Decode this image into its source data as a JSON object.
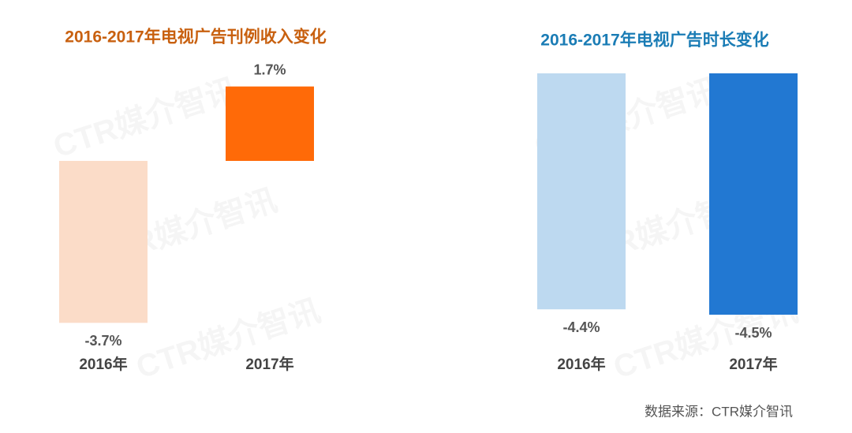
{
  "chart_data": [
    {
      "type": "bar",
      "title": "2016-2017年电视广告刊例收入变化",
      "title_color": "#c8600f",
      "categories": [
        "2016年",
        "2017年"
      ],
      "values": [
        -3.7,
        1.7
      ],
      "value_labels": [
        "-3.7%",
        "1.7%"
      ],
      "colors": [
        "#fbdcc8",
        "#ff6a08"
      ],
      "ylim": [
        -4,
        2
      ]
    },
    {
      "type": "bar",
      "title": "2016-2017年电视广告时长变化",
      "title_color": "#1a7cb5",
      "categories": [
        "2016年",
        "2017年"
      ],
      "values": [
        -4.4,
        -4.5
      ],
      "value_labels": [
        "-4.4%",
        "-4.5%"
      ],
      "colors": [
        "#bdd9f0",
        "#2278d2"
      ],
      "ylim": [
        -5,
        0
      ]
    }
  ],
  "watermark": "CTR媒介智讯",
  "source": "数据来源：CTR媒介智讯"
}
